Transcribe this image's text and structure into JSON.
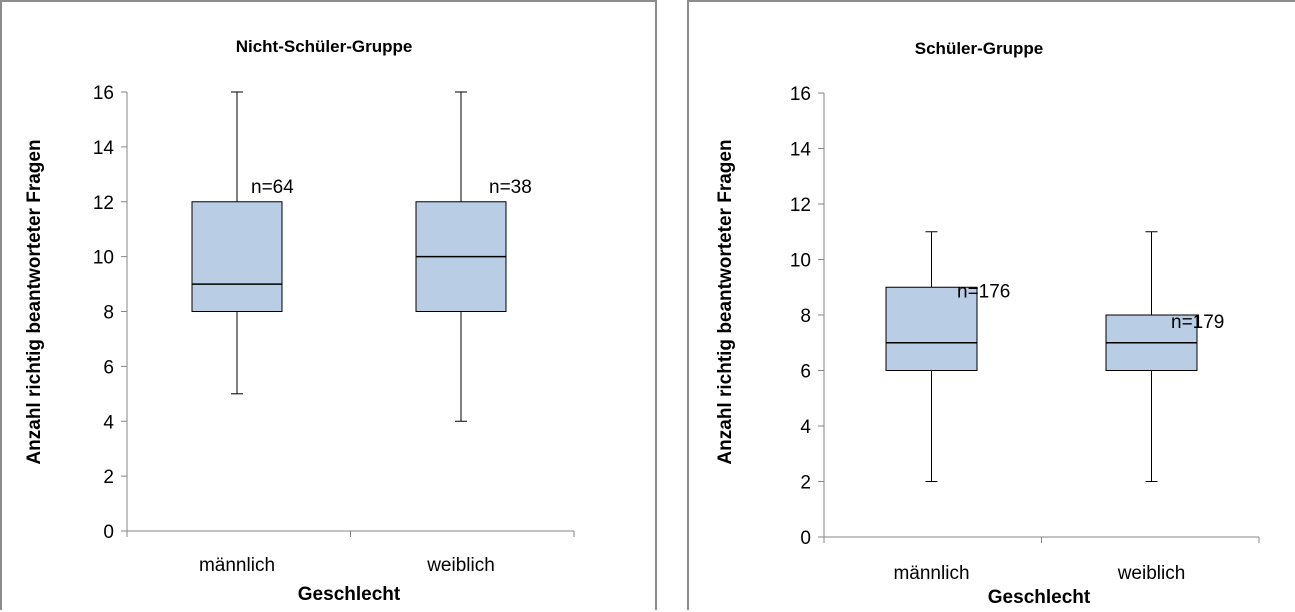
{
  "chart_data": [
    {
      "type": "boxplot",
      "title": "Nicht-Schüler-Gruppe",
      "xlabel": "Geschlecht",
      "ylabel": "Anzahl richtig beantworteter Fragen",
      "ylim": [
        0,
        16
      ],
      "yticks": [
        0,
        2,
        4,
        6,
        8,
        10,
        12,
        14,
        16
      ],
      "categories": [
        "männlich",
        "weiblich"
      ],
      "boxes": [
        {
          "category": "männlich",
          "min": 5,
          "q1": 8,
          "median": 9,
          "q3": 12,
          "max": 16,
          "n_label": "n=64"
        },
        {
          "category": "weiblich",
          "min": 4,
          "q1": 8,
          "median": 10,
          "q3": 12,
          "max": 16,
          "n_label": "n=38"
        }
      ],
      "box_color": "#b9cde5",
      "grid": false
    },
    {
      "type": "boxplot",
      "title": "Schüler-Gruppe",
      "xlabel": "Geschlecht",
      "ylabel": "Anzahl richtig beantworteter Fragen",
      "ylim": [
        0,
        16
      ],
      "yticks": [
        0,
        2,
        4,
        6,
        8,
        10,
        12,
        14,
        16
      ],
      "categories": [
        "männlich",
        "weiblich"
      ],
      "boxes": [
        {
          "category": "männlich",
          "min": 2,
          "q1": 6,
          "median": 7,
          "q3": 9,
          "max": 11,
          "n_label": "n=176"
        },
        {
          "category": "weiblich",
          "min": 2,
          "q1": 6,
          "median": 7,
          "q3": 8,
          "max": 11,
          "n_label": "n=179"
        }
      ],
      "box_color": "#b9cde5",
      "grid": false
    }
  ]
}
